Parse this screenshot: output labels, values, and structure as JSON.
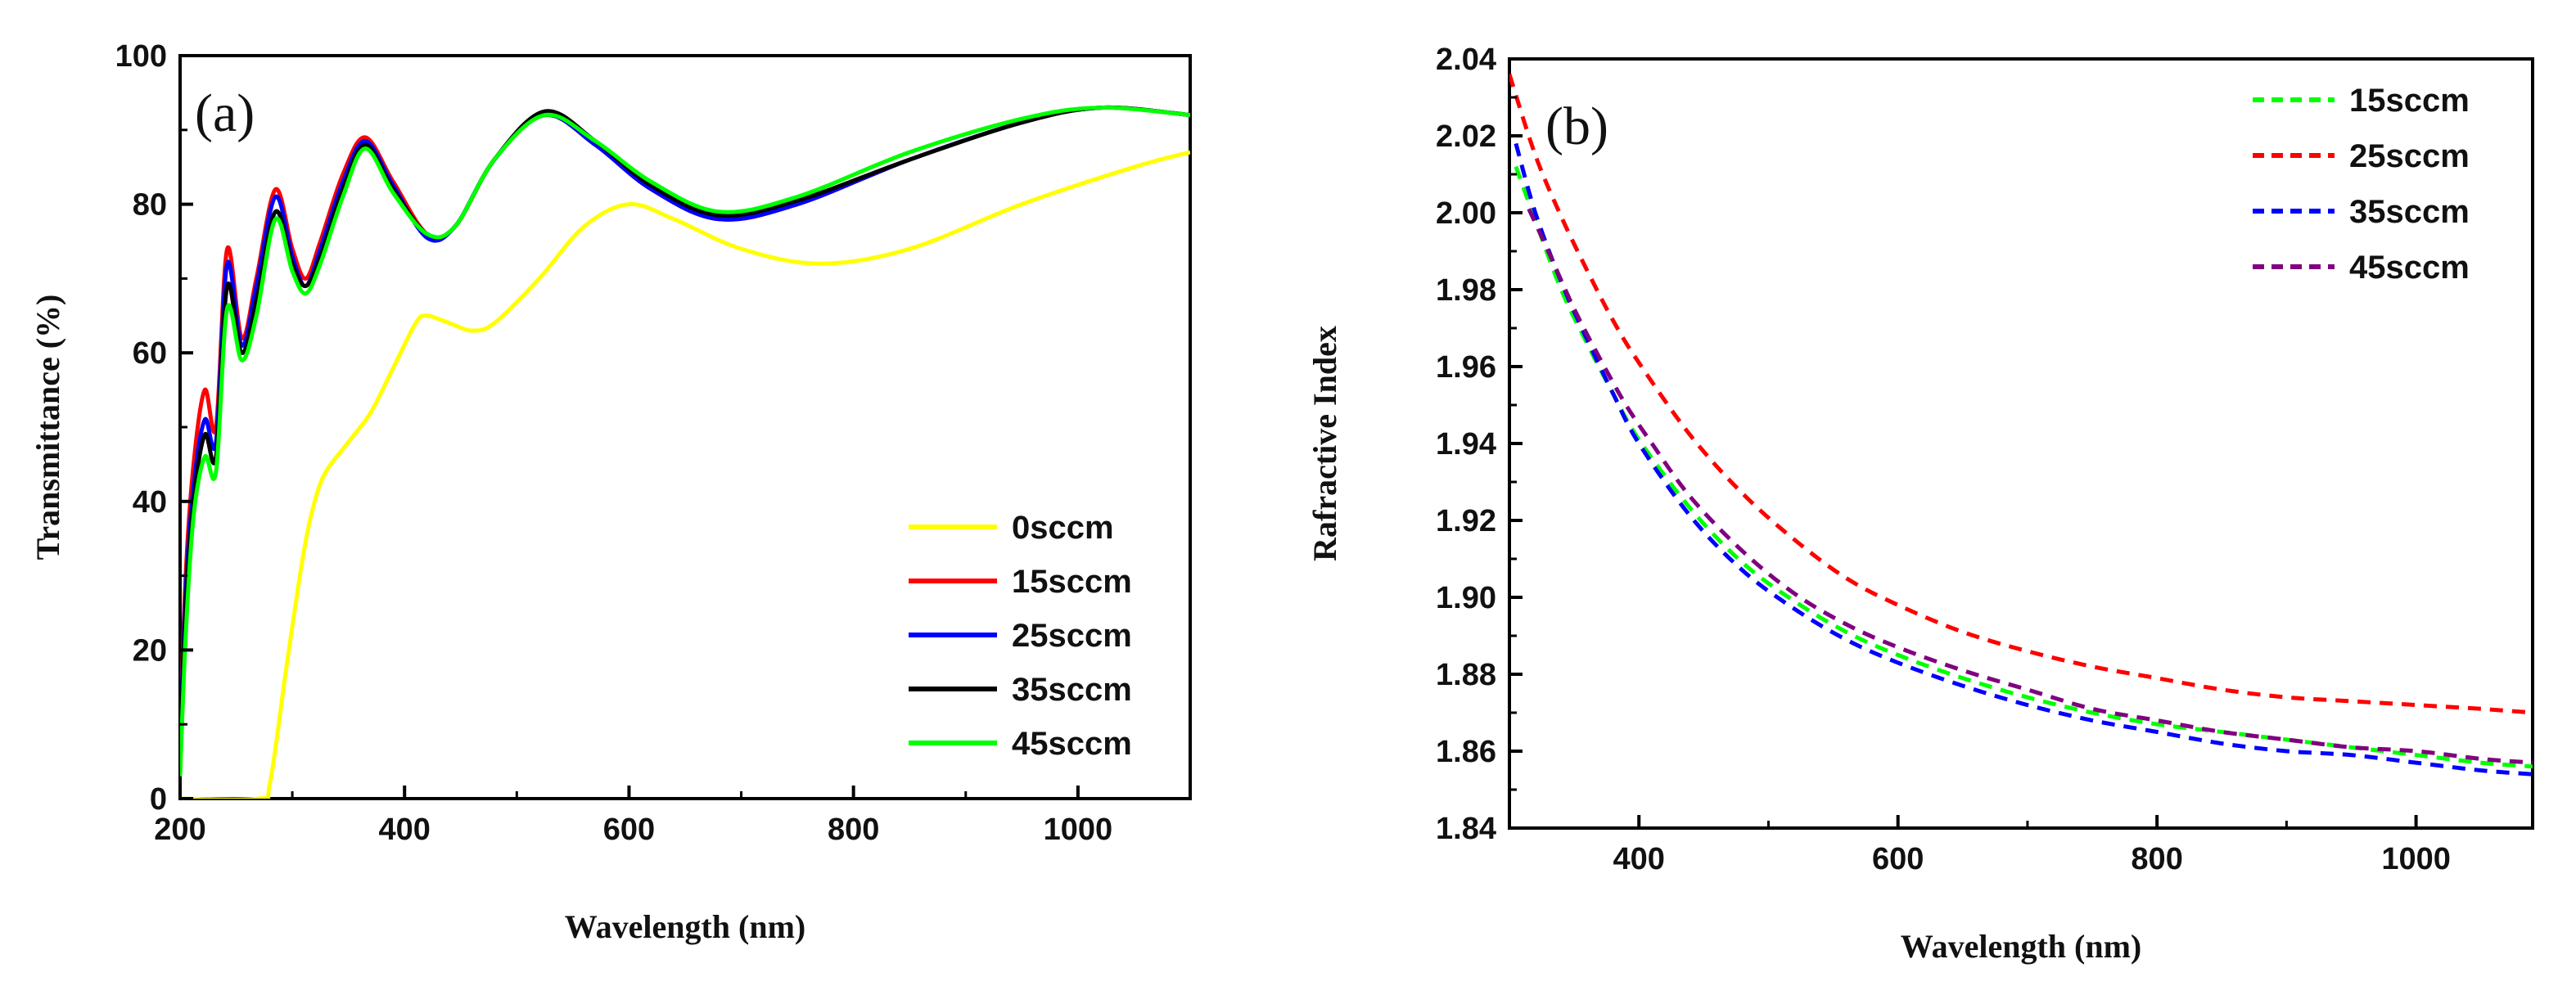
{
  "chart_data": [
    {
      "type": "line",
      "panel_label": "(a)",
      "title": "",
      "xlabel": "Wavelength (nm)",
      "ylabel": "Transmittance (%)",
      "xlim": [
        200,
        1100
      ],
      "ylim": [
        0,
        100
      ],
      "x_ticks": [
        200,
        400,
        600,
        800,
        1000
      ],
      "y_ticks": [
        0,
        20,
        40,
        60,
        80,
        100
      ],
      "legend_position": "bottom-right",
      "line_style": "solid",
      "series": [
        {
          "name": "0sccm",
          "color": "#ffff00",
          "x": [
            200,
            270,
            280,
            295,
            310,
            320,
            330,
            350,
            370,
            390,
            410,
            420,
            440,
            460,
            480,
            520,
            560,
            600,
            640,
            700,
            770,
            850,
            950,
            1050,
            1100
          ],
          "y": [
            0,
            0,
            2,
            18,
            33,
            40,
            44,
            48,
            52,
            58,
            64,
            65,
            64,
            63,
            64,
            70,
            77,
            80,
            78,
            74,
            72,
            74,
            80,
            85,
            87
          ]
        },
        {
          "name": "15sccm",
          "color": "#ff0000",
          "x": [
            200,
            205,
            212,
            222,
            232,
            242,
            255,
            268,
            285,
            300,
            312,
            325,
            345,
            365,
            390,
            420,
            445,
            480,
            525,
            570,
            620,
            680,
            750,
            850,
            950,
            1020,
            1100
          ],
          "y": [
            8,
            30,
            45,
            55,
            50,
            74,
            62,
            70,
            82,
            74,
            70,
            75,
            84,
            89,
            83,
            76,
            77,
            86,
            92,
            88,
            82,
            78,
            80,
            86,
            91,
            93,
            92
          ]
        },
        {
          "name": "25sccm",
          "color": "#0000ff",
          "x": [
            200,
            205,
            212,
            222,
            232,
            242,
            255,
            268,
            285,
            300,
            312,
            325,
            345,
            365,
            390,
            420,
            445,
            480,
            525,
            570,
            620,
            680,
            750,
            850,
            950,
            1020,
            1100
          ],
          "y": [
            7,
            28,
            42,
            51,
            48,
            72,
            61,
            69,
            81,
            73,
            69,
            74,
            83,
            88.5,
            82.5,
            75.5,
            77,
            86,
            92,
            88,
            82,
            78,
            80,
            86,
            91,
            93,
            92
          ]
        },
        {
          "name": "35sccm",
          "color": "#000000",
          "x": [
            200,
            205,
            212,
            222,
            232,
            242,
            255,
            268,
            285,
            300,
            312,
            325,
            345,
            365,
            390,
            420,
            445,
            480,
            525,
            570,
            620,
            680,
            750,
            850,
            950,
            1020,
            1100
          ],
          "y": [
            6,
            26,
            40,
            49,
            46,
            69,
            60,
            67,
            79,
            72,
            69,
            73,
            82,
            88,
            82,
            76,
            77,
            86,
            92.5,
            88.5,
            82.5,
            78.5,
            80.5,
            86,
            91,
            93,
            92
          ]
        },
        {
          "name": "45sccm",
          "color": "#00ff00",
          "x": [
            200,
            205,
            212,
            222,
            232,
            242,
            255,
            268,
            285,
            300,
            312,
            325,
            345,
            365,
            390,
            420,
            445,
            480,
            525,
            570,
            620,
            680,
            750,
            850,
            950,
            1020,
            1100
          ],
          "y": [
            3,
            22,
            38,
            46,
            44,
            66,
            59,
            65,
            78,
            71,
            68,
            72,
            81,
            87.5,
            81.5,
            76,
            77,
            86,
            92,
            88.5,
            83,
            79,
            81,
            87,
            91.5,
            93,
            92
          ]
        }
      ]
    },
    {
      "type": "line",
      "panel_label": "(b)",
      "title": "",
      "xlabel": "Wavelength (nm)",
      "ylabel": "Rafractive Index",
      "xlim": [
        300,
        1090
      ],
      "ylim": [
        1.84,
        2.04
      ],
      "x_ticks": [
        400,
        600,
        800,
        1000
      ],
      "y_ticks": [
        "1.84",
        "1.86",
        "1.88",
        "1.90",
        "1.92",
        "1.94",
        "1.96",
        "1.98",
        "2.00",
        "2.02",
        "2.04"
      ],
      "legend_position": "top-right",
      "line_style": "dashed",
      "series": [
        {
          "name": "15sccm",
          "color": "#00ff00",
          "x": [
            305,
            320,
            340,
            360,
            380,
            400,
            440,
            480,
            520,
            560,
            600,
            650,
            700,
            750,
            800,
            850,
            900,
            950,
            1000,
            1050,
            1090
          ],
          "y": [
            2.012,
            1.998,
            1.98,
            1.966,
            1.953,
            1.941,
            1.923,
            1.909,
            1.899,
            1.891,
            1.885,
            1.879,
            1.874,
            1.87,
            1.867,
            1.865,
            1.863,
            1.861,
            1.859,
            1.857,
            1.856
          ]
        },
        {
          "name": "25sccm",
          "color": "#ff0000",
          "x": [
            300,
            320,
            340,
            360,
            380,
            400,
            440,
            480,
            520,
            560,
            600,
            650,
            700,
            750,
            800,
            850,
            900,
            950,
            1000,
            1050,
            1090
          ],
          "y": [
            2.036,
            2.015,
            1.999,
            1.985,
            1.972,
            1.961,
            1.942,
            1.927,
            1.915,
            1.905,
            1.898,
            1.891,
            1.886,
            1.882,
            1.879,
            1.876,
            1.874,
            1.873,
            1.872,
            1.871,
            1.87
          ]
        },
        {
          "name": "35sccm",
          "color": "#0000ff",
          "x": [
            305,
            320,
            340,
            360,
            380,
            400,
            440,
            480,
            520,
            560,
            600,
            650,
            700,
            750,
            800,
            850,
            900,
            950,
            1000,
            1050,
            1090
          ],
          "y": [
            2.018,
            2.0,
            1.982,
            1.967,
            1.953,
            1.94,
            1.921,
            1.907,
            1.897,
            1.889,
            1.883,
            1.877,
            1.872,
            1.868,
            1.865,
            1.862,
            1.86,
            1.859,
            1.857,
            1.855,
            1.854
          ]
        },
        {
          "name": "45sccm",
          "color": "#800080",
          "x": [
            315,
            330,
            350,
            370,
            390,
            410,
            440,
            480,
            520,
            560,
            600,
            650,
            700,
            750,
            800,
            850,
            900,
            950,
            1000,
            1050,
            1090
          ],
          "y": [
            2.001,
            1.99,
            1.975,
            1.962,
            1.95,
            1.94,
            1.926,
            1.912,
            1.901,
            1.893,
            1.887,
            1.881,
            1.876,
            1.871,
            1.868,
            1.865,
            1.863,
            1.861,
            1.86,
            1.858,
            1.857
          ]
        }
      ]
    }
  ]
}
